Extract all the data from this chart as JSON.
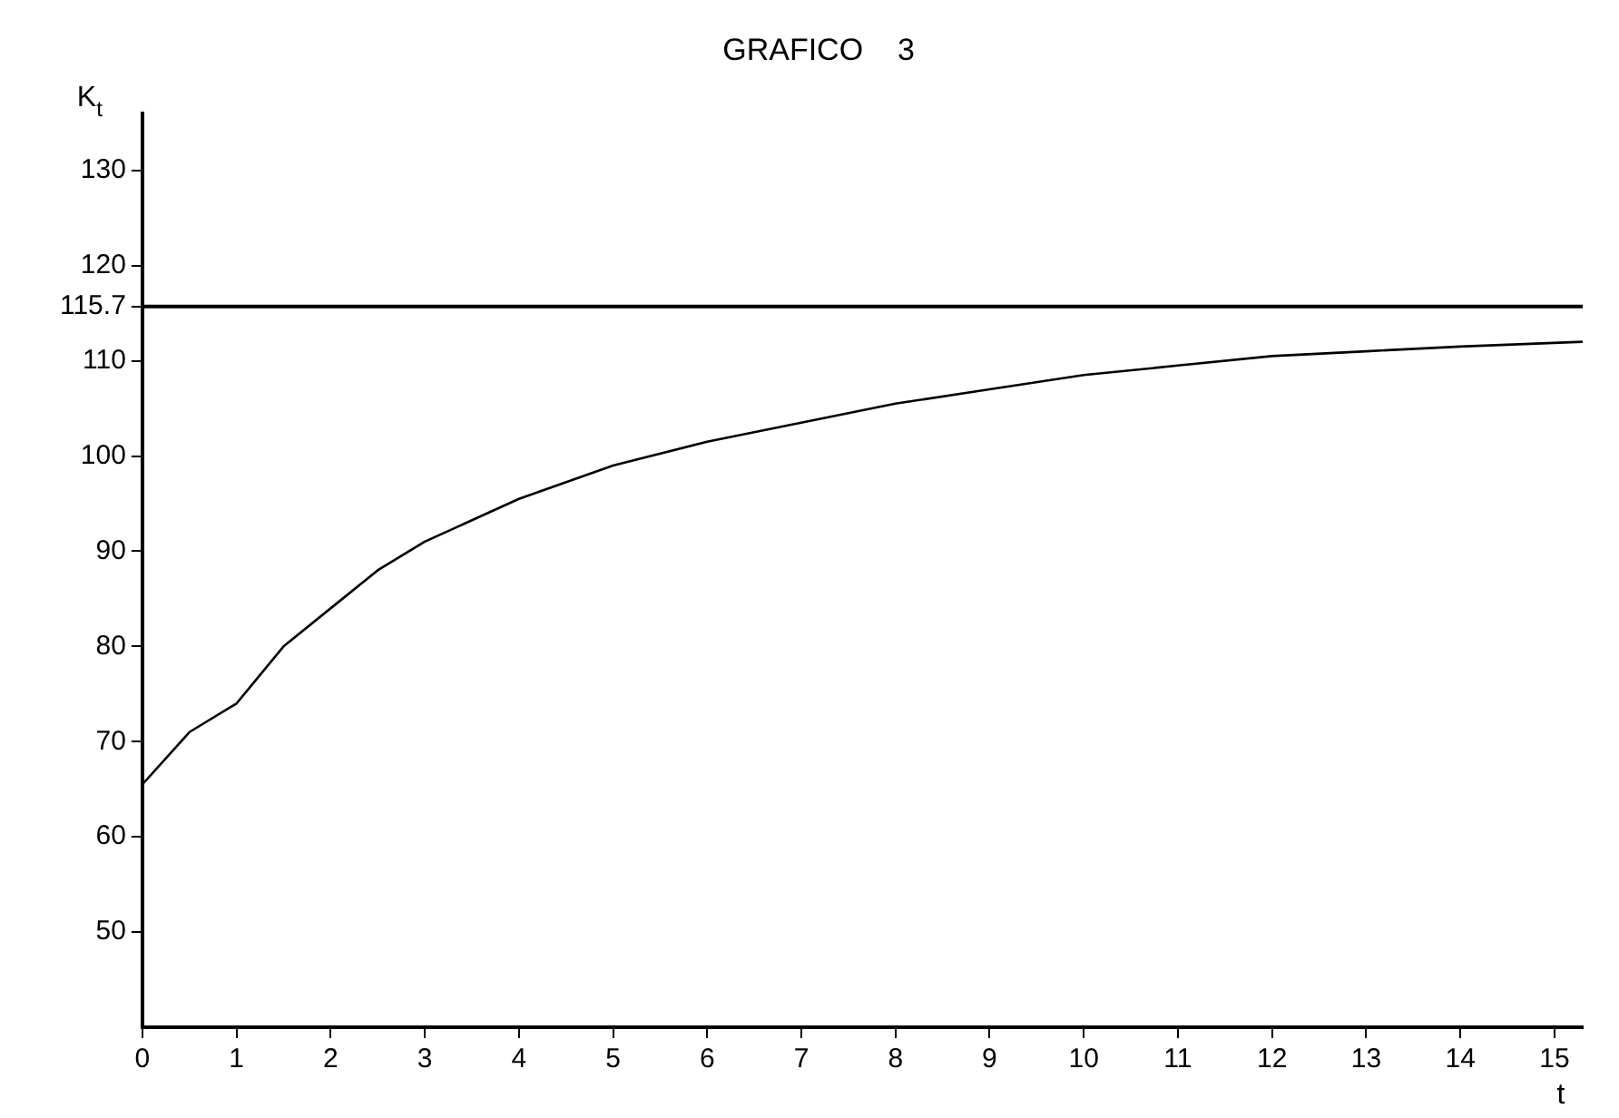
{
  "chart_data": {
    "type": "line",
    "title": "GRAFICO    3",
    "ylabel": "K$_{t}$",
    "xlabel": "t",
    "x": [
      0,
      0.5,
      1,
      1.5,
      2,
      2.5,
      3,
      4,
      5,
      6,
      7,
      8,
      9,
      10,
      11,
      12,
      13,
      14,
      15.3
    ],
    "series": [
      {
        "color": "#000000",
        "values": [
          65.5,
          71,
          74,
          80,
          84,
          88,
          91,
          95.5,
          99,
          101.5,
          103.5,
          105.5,
          107,
          108.5,
          109.5,
          110.5,
          111,
          111.5,
          112
        ]
      }
    ],
    "xlim": [
      0,
      15.3
    ],
    "xticks": [
      0,
      1,
      2,
      3,
      4,
      5,
      6,
      7,
      8,
      9,
      10,
      11,
      12,
      13,
      14,
      15
    ],
    "ylim": [
      40,
      136
    ],
    "yticks": [
      50,
      60,
      70,
      80,
      90,
      100,
      110,
      115.7,
      120,
      130
    ],
    "ref_lines": [
      {
        "axis": "y",
        "value": 115.7,
        "color": "#000000"
      }
    ],
    "grid": false,
    "legend": false,
    "marker": "none",
    "line_style": "solid"
  }
}
